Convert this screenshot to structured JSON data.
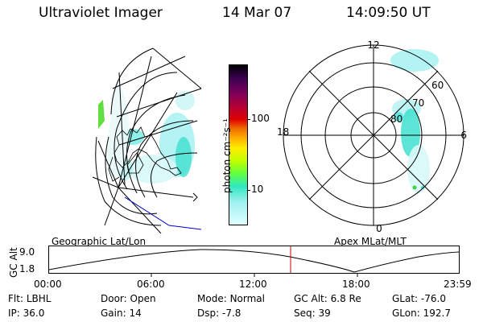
{
  "header": {
    "title": "Ultraviolet Imager",
    "date": "14 Mar 07",
    "time": "14:09:50 UT"
  },
  "colorbar": {
    "unit": "photon cm⁻²s⁻¹",
    "ticks": [
      {
        "value": 100,
        "label": "100"
      },
      {
        "value": 10,
        "label": "10"
      }
    ],
    "scale": "log",
    "colors": [
      "#000000",
      "#3a0050",
      "#80005a",
      "#c0002a",
      "#e00000",
      "#f07000",
      "#ffb000",
      "#ffee00",
      "#c0ff00",
      "#60ff40",
      "#30e8c0",
      "#a0f0f0",
      "#e0ffff"
    ]
  },
  "left_map": {
    "label": "Geographic Lat/Lon",
    "overlay_color": "#0000cc",
    "aurora_colors": [
      "#40e0e0",
      "#80ff40"
    ]
  },
  "polar_plot": {
    "label": "Apex MLat/MLT",
    "mlt_labels": [
      {
        "value": "12",
        "pos": "top"
      },
      {
        "value": "6",
        "pos": "right"
      },
      {
        "value": "0",
        "pos": "bottom"
      },
      {
        "value": "18",
        "pos": "left"
      }
    ],
    "mlat_labels": [
      "60",
      "70",
      "80"
    ]
  },
  "altitude_plot": {
    "axis_label": "GC Alt",
    "y_ticks": [
      "9.0",
      "1.8"
    ],
    "x_ticks": [
      "00:00",
      "06:00",
      "12:00",
      "18:00",
      "23:59"
    ],
    "current_time_marker_color": "#cc0000"
  },
  "info": {
    "row1": [
      {
        "label": "Flt:",
        "value": "LBHL"
      },
      {
        "label": "Door:",
        "value": "Open"
      },
      {
        "label": "Mode:",
        "value": "Normal"
      },
      {
        "label": "GC Alt:",
        "value": "6.8 Re"
      },
      {
        "label": "GLat:",
        "value": "-76.0"
      }
    ],
    "row2": [
      {
        "label": "IP:",
        "value": "36.0"
      },
      {
        "label": "Gain:",
        "value": "14"
      },
      {
        "label": "Dsp:",
        "value": "-7.8"
      },
      {
        "label": "Seq:",
        "value": "39"
      },
      {
        "label": "GLon:",
        "value": "192.7"
      }
    ]
  }
}
